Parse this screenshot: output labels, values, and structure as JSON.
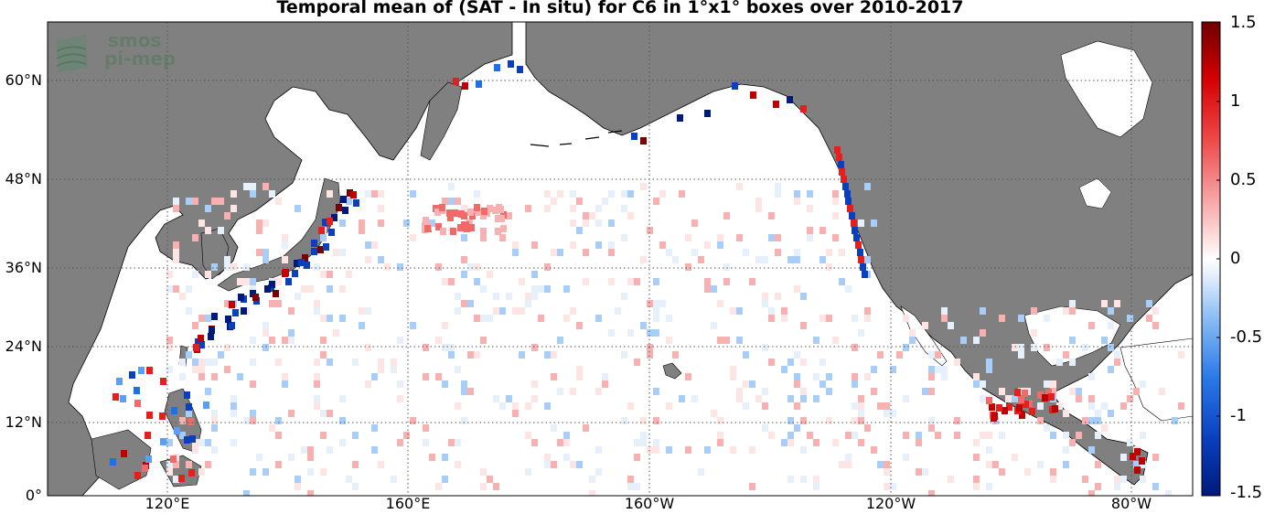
{
  "title": "Temporal mean of (SAT - In situ) for C6 in 1°x1° boxes over 2010-2017",
  "logo": {
    "line1": "smos",
    "line2": "pi-mep"
  },
  "axes": {
    "lat_labels": [
      "60°N",
      "48°N",
      "36°N",
      "24°N",
      "12°N",
      "0°"
    ],
    "lon_labels": [
      "120°E",
      "160°E",
      "160°W",
      "120°W",
      "80°W"
    ]
  },
  "colorbar": {
    "range": [
      -1.5,
      1.5
    ],
    "tick_labels": [
      "1.5",
      "1",
      "0.5",
      "0",
      "-0.5",
      "-1",
      "-1.5"
    ],
    "colors_low_to_high": [
      "#001a7a",
      "#0a3fbf",
      "#1f6fe8",
      "#5a9ef5",
      "#a8cdf7",
      "#e6f0fb",
      "#ffffff",
      "#fde5e5",
      "#f7b1b1",
      "#f06a6a",
      "#e61e1e",
      "#c00000",
      "#7a0000"
    ]
  },
  "colors": {
    "land": "#808080",
    "ocean": "#ffffff",
    "grid": "#555555"
  }
}
